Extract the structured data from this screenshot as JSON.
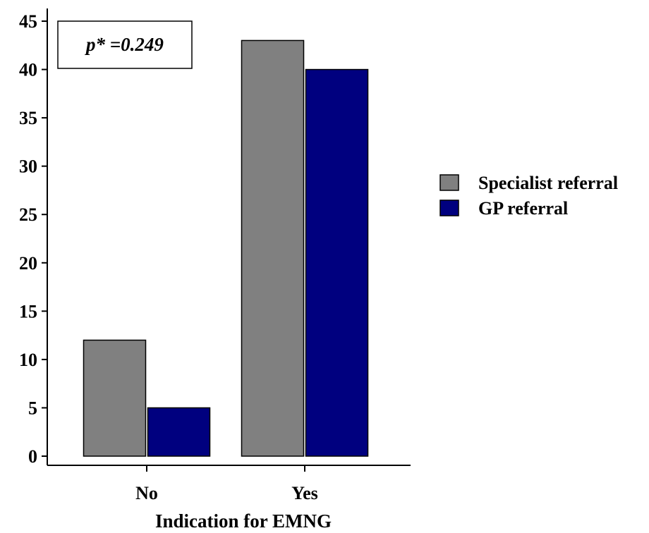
{
  "chart_data": {
    "type": "bar",
    "title": "",
    "xlabel": "Indication for EMNG",
    "ylabel": "",
    "categories": [
      "No",
      "Yes"
    ],
    "series": [
      {
        "name": "Specialist referral",
        "values": [
          12,
          43
        ],
        "color": "#808080"
      },
      {
        "name": "GP referral",
        "values": [
          5,
          40
        ],
        "color": "#00007f"
      }
    ],
    "ylim": [
      0,
      45
    ],
    "yticks": [
      "0",
      "5",
      "10",
      "15",
      "20",
      "25",
      "30",
      "35",
      "40",
      "45"
    ],
    "grid": false,
    "legend_position": "right",
    "annotation": "p* =0.249"
  }
}
